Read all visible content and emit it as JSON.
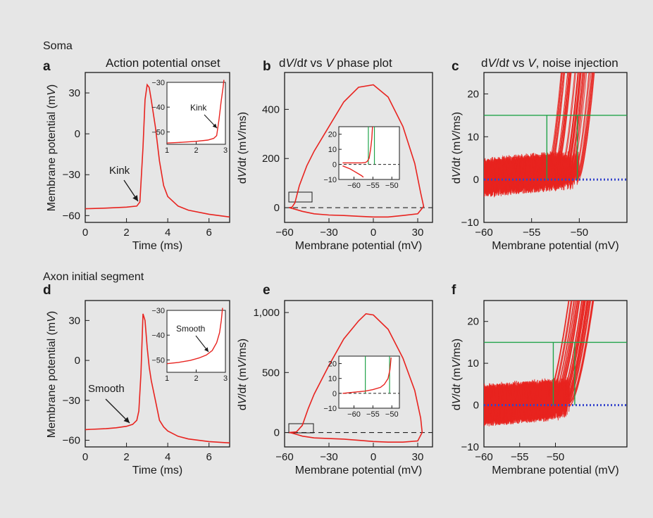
{
  "sections": {
    "soma": "Soma",
    "ais": "Axon initial segment"
  },
  "colors": {
    "trace": "#e8231f",
    "threshold": "#21a34a",
    "zero": "#3344cc",
    "dash": "#222222"
  },
  "chart_data": [
    {
      "id": "a",
      "panel_label": "a",
      "type": "line",
      "title": "Action potential onset",
      "xlabel": "Time (ms)",
      "ylabel": "Membrane potential (mV)",
      "xlim": [
        0,
        7
      ],
      "ylim": [
        -65,
        45
      ],
      "xticks": [
        0,
        2,
        4,
        6
      ],
      "yticks": [
        -60,
        -30,
        0,
        30
      ],
      "series": [
        {
          "x": [
            0,
            1,
            2,
            2.5,
            2.65,
            2.8,
            2.9,
            3.0,
            3.1,
            3.2,
            3.4,
            3.6,
            3.8,
            4.0,
            4.5,
            5,
            6,
            7
          ],
          "y": [
            -55,
            -54.5,
            -53.8,
            -53,
            -50,
            -10,
            25,
            36,
            34,
            25,
            5,
            -20,
            -38,
            -46,
            -53,
            -56,
            -59,
            -61
          ]
        }
      ],
      "annotation": "Kink",
      "inset": {
        "xlim": [
          1,
          3
        ],
        "ylim": [
          -55,
          -30
        ],
        "xticks": [
          1,
          2,
          3
        ],
        "yticks": [
          -50,
          -40,
          -30
        ],
        "annotation": "Kink",
        "series": [
          {
            "x": [
              1,
              1.5,
              2,
              2.4,
              2.6,
              2.7,
              2.78,
              2.85,
              2.92,
              2.95
            ],
            "y": [
              -54.5,
              -54.2,
              -53.8,
              -53.3,
              -52.6,
              -51.5,
              -45,
              -38,
              -32,
              -29
            ]
          }
        ]
      }
    },
    {
      "id": "b",
      "panel_label": "b",
      "type": "line",
      "title": "dV/dt vs V phase plot",
      "xlabel": "Membrane potential (mV)",
      "ylabel": "dV/dt (mV/ms)",
      "xlim": [
        -60,
        40
      ],
      "ylim": [
        -60,
        550
      ],
      "xticks": [
        -60,
        -30,
        0,
        30
      ],
      "yticks": [
        0,
        200,
        400
      ],
      "series": [
        {
          "x": [
            -57,
            -55,
            -53,
            -50,
            -45,
            -40,
            -30,
            -20,
            -10,
            0,
            10,
            20,
            28,
            32,
            34,
            30,
            20,
            10,
            0,
            -10,
            -20,
            -30,
            -40,
            -48,
            -52,
            -55,
            -57
          ],
          "y": [
            0,
            2,
            20,
            90,
            170,
            230,
            330,
            430,
            490,
            500,
            450,
            330,
            180,
            60,
            5,
            -25,
            -32,
            -38,
            -38,
            -35,
            -32,
            -30,
            -25,
            -15,
            -8,
            -3,
            0
          ]
        }
      ],
      "inset": {
        "xlim": [
          -64,
          -48
        ],
        "ylim": [
          -10,
          25
        ],
        "xticks": [
          -60,
          -55,
          -50
        ],
        "yticks": [
          -10,
          0,
          10,
          20
        ],
        "threshold_x": [
          -56.2,
          -54.6
        ],
        "series": [
          {
            "x": [
              -63,
              -62,
              -61,
              -60,
              -59,
              -58,
              -57,
              -56.5,
              -56,
              -55.6,
              -55.3,
              -55.1
            ],
            "y": [
              1,
              1,
              1,
              1,
              1,
              1,
              1.2,
              2,
              4,
              10,
              17,
              25
            ]
          },
          {
            "x": [
              -63,
              -61,
              -60,
              -59,
              -58,
              -57.5
            ],
            "y": [
              -1,
              -3,
              -4.5,
              -6,
              -7.5,
              -8.5
            ]
          }
        ]
      }
    },
    {
      "id": "c",
      "panel_label": "c",
      "type": "line",
      "title": "dV/dt vs V, noise injection",
      "xlabel": "Membrane potential (mV)",
      "ylabel": "dV/dt (mV/ms)",
      "xlim": [
        -60,
        -45
      ],
      "ylim": [
        -10,
        25
      ],
      "xticks": [
        -60,
        -55,
        -50
      ],
      "yticks": [
        -10,
        0,
        10,
        20
      ],
      "threshold_y": 15,
      "threshold_x": [
        -53.4,
        -50.2
      ],
      "zero_line": 0
    },
    {
      "id": "d",
      "panel_label": "d",
      "type": "line",
      "xlabel": "Time (ms)",
      "ylabel": "Membrane potential (mV)",
      "xlim": [
        0,
        7
      ],
      "ylim": [
        -65,
        45
      ],
      "xticks": [
        0,
        2,
        4,
        6
      ],
      "yticks": [
        -60,
        -30,
        0,
        30
      ],
      "series": [
        {
          "x": [
            0,
            1,
            1.5,
            2,
            2.3,
            2.5,
            2.6,
            2.7,
            2.8,
            2.9,
            3.0,
            3.1,
            3.2,
            3.4,
            3.6,
            3.8,
            4,
            4.5,
            5,
            6,
            7
          ],
          "y": [
            -52,
            -51.3,
            -50.6,
            -49.5,
            -48,
            -45,
            -38,
            -10,
            35,
            30,
            10,
            -5,
            -15,
            -30,
            -45,
            -50,
            -53,
            -57,
            -59,
            -61,
            -62
          ]
        }
      ],
      "annotation": "Smooth",
      "inset": {
        "xlim": [
          1,
          3
        ],
        "ylim": [
          -55,
          -30
        ],
        "xticks": [
          1,
          2,
          3
        ],
        "yticks": [
          -50,
          -40,
          -30
        ],
        "annotation": "Smooth",
        "series": [
          {
            "x": [
              1,
              1.4,
              1.8,
              2.1,
              2.35,
              2.55,
              2.7,
              2.8,
              2.86,
              2.9
            ],
            "y": [
              -51.5,
              -51,
              -50.2,
              -49.2,
              -48,
              -46.2,
              -43,
              -39,
              -34,
              -29
            ]
          }
        ]
      }
    },
    {
      "id": "e",
      "panel_label": "e",
      "type": "line",
      "xlabel": "Membrane potential (mV)",
      "ylabel": "dV/dt (mV/ms)",
      "xlim": [
        -60,
        40
      ],
      "ylim": [
        -120,
        1100
      ],
      "xticks": [
        -60,
        -30,
        0,
        30
      ],
      "yticks": [
        0,
        500,
        "1,000"
      ],
      "series": [
        {
          "x": [
            -57,
            -52,
            -48,
            -44,
            -40,
            -30,
            -20,
            -10,
            -5,
            0,
            10,
            20,
            28,
            32,
            33,
            30,
            20,
            10,
            0,
            -10,
            -20,
            -30,
            -40,
            -48,
            -52,
            -55,
            -57
          ],
          "y": [
            0,
            5,
            60,
            200,
            320,
            560,
            780,
            930,
            990,
            980,
            860,
            620,
            350,
            120,
            0,
            -70,
            -80,
            -80,
            -75,
            -65,
            -55,
            -50,
            -45,
            -30,
            -15,
            -5,
            0
          ]
        }
      ],
      "inset": {
        "xlim": [
          -64,
          -48
        ],
        "ylim": [
          -10,
          25
        ],
        "xticks": [
          -60,
          -55,
          -50
        ],
        "yticks": [
          -10,
          0,
          10,
          20
        ],
        "threshold_x": [
          -57,
          -50.6
        ],
        "series": [
          {
            "x": [
              -63,
              -61,
              -59,
              -57,
              -55,
              -53,
              -52,
              -51,
              -50.5,
              -50.2
            ],
            "y": [
              0,
              0.5,
              1,
              1.5,
              2.5,
              4,
              6,
              10,
              16,
              24
            ]
          }
        ]
      }
    },
    {
      "id": "f",
      "panel_label": "f",
      "type": "line",
      "xlabel": "Membrane potential (mV)",
      "ylabel": "dV/dt (mV/ms)",
      "xlim": [
        -60,
        -40
      ],
      "ylim": [
        -10,
        25
      ],
      "xticks": [
        -60,
        -55,
        -50
      ],
      "yticks": [
        -10,
        0,
        10,
        20
      ],
      "threshold_y": 15,
      "threshold_x": [
        -50.3,
        -47.3
      ],
      "zero_line": 0
    }
  ]
}
